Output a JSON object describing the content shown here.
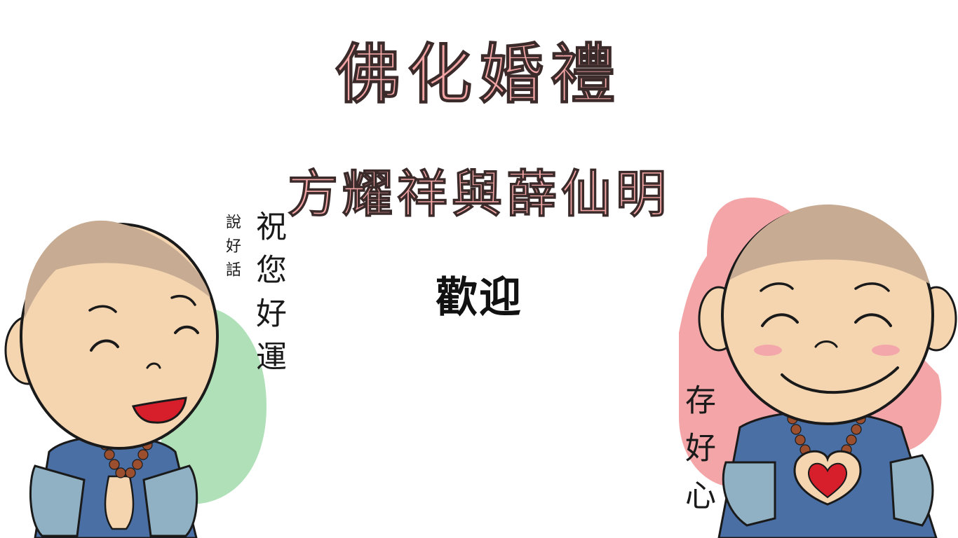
{
  "heading": {
    "title": "佛化婚禮",
    "names": "方耀祥與薛仙明",
    "welcome": "歡迎"
  },
  "left_monk": {
    "main_text": "祝您好運",
    "small_text": "說好話"
  },
  "right_monk": {
    "main_text": "存好心"
  },
  "colors": {
    "title": "#f4a5a5",
    "title_outline": "#3a2a2a",
    "welcome": "#111111",
    "skin": "#f4d5b0",
    "head_top": "#c7ab92",
    "robe": "#4a6fa5",
    "sleeve": "#8fb1c3",
    "bead": "#9c4f2e",
    "left_blob": "#afe0b8",
    "right_blob": "#f4a5a8",
    "blush": "#f3a7ab",
    "heart": "#d61f2b",
    "mouth": "#d61f2b",
    "outline": "#1a1a1a"
  }
}
